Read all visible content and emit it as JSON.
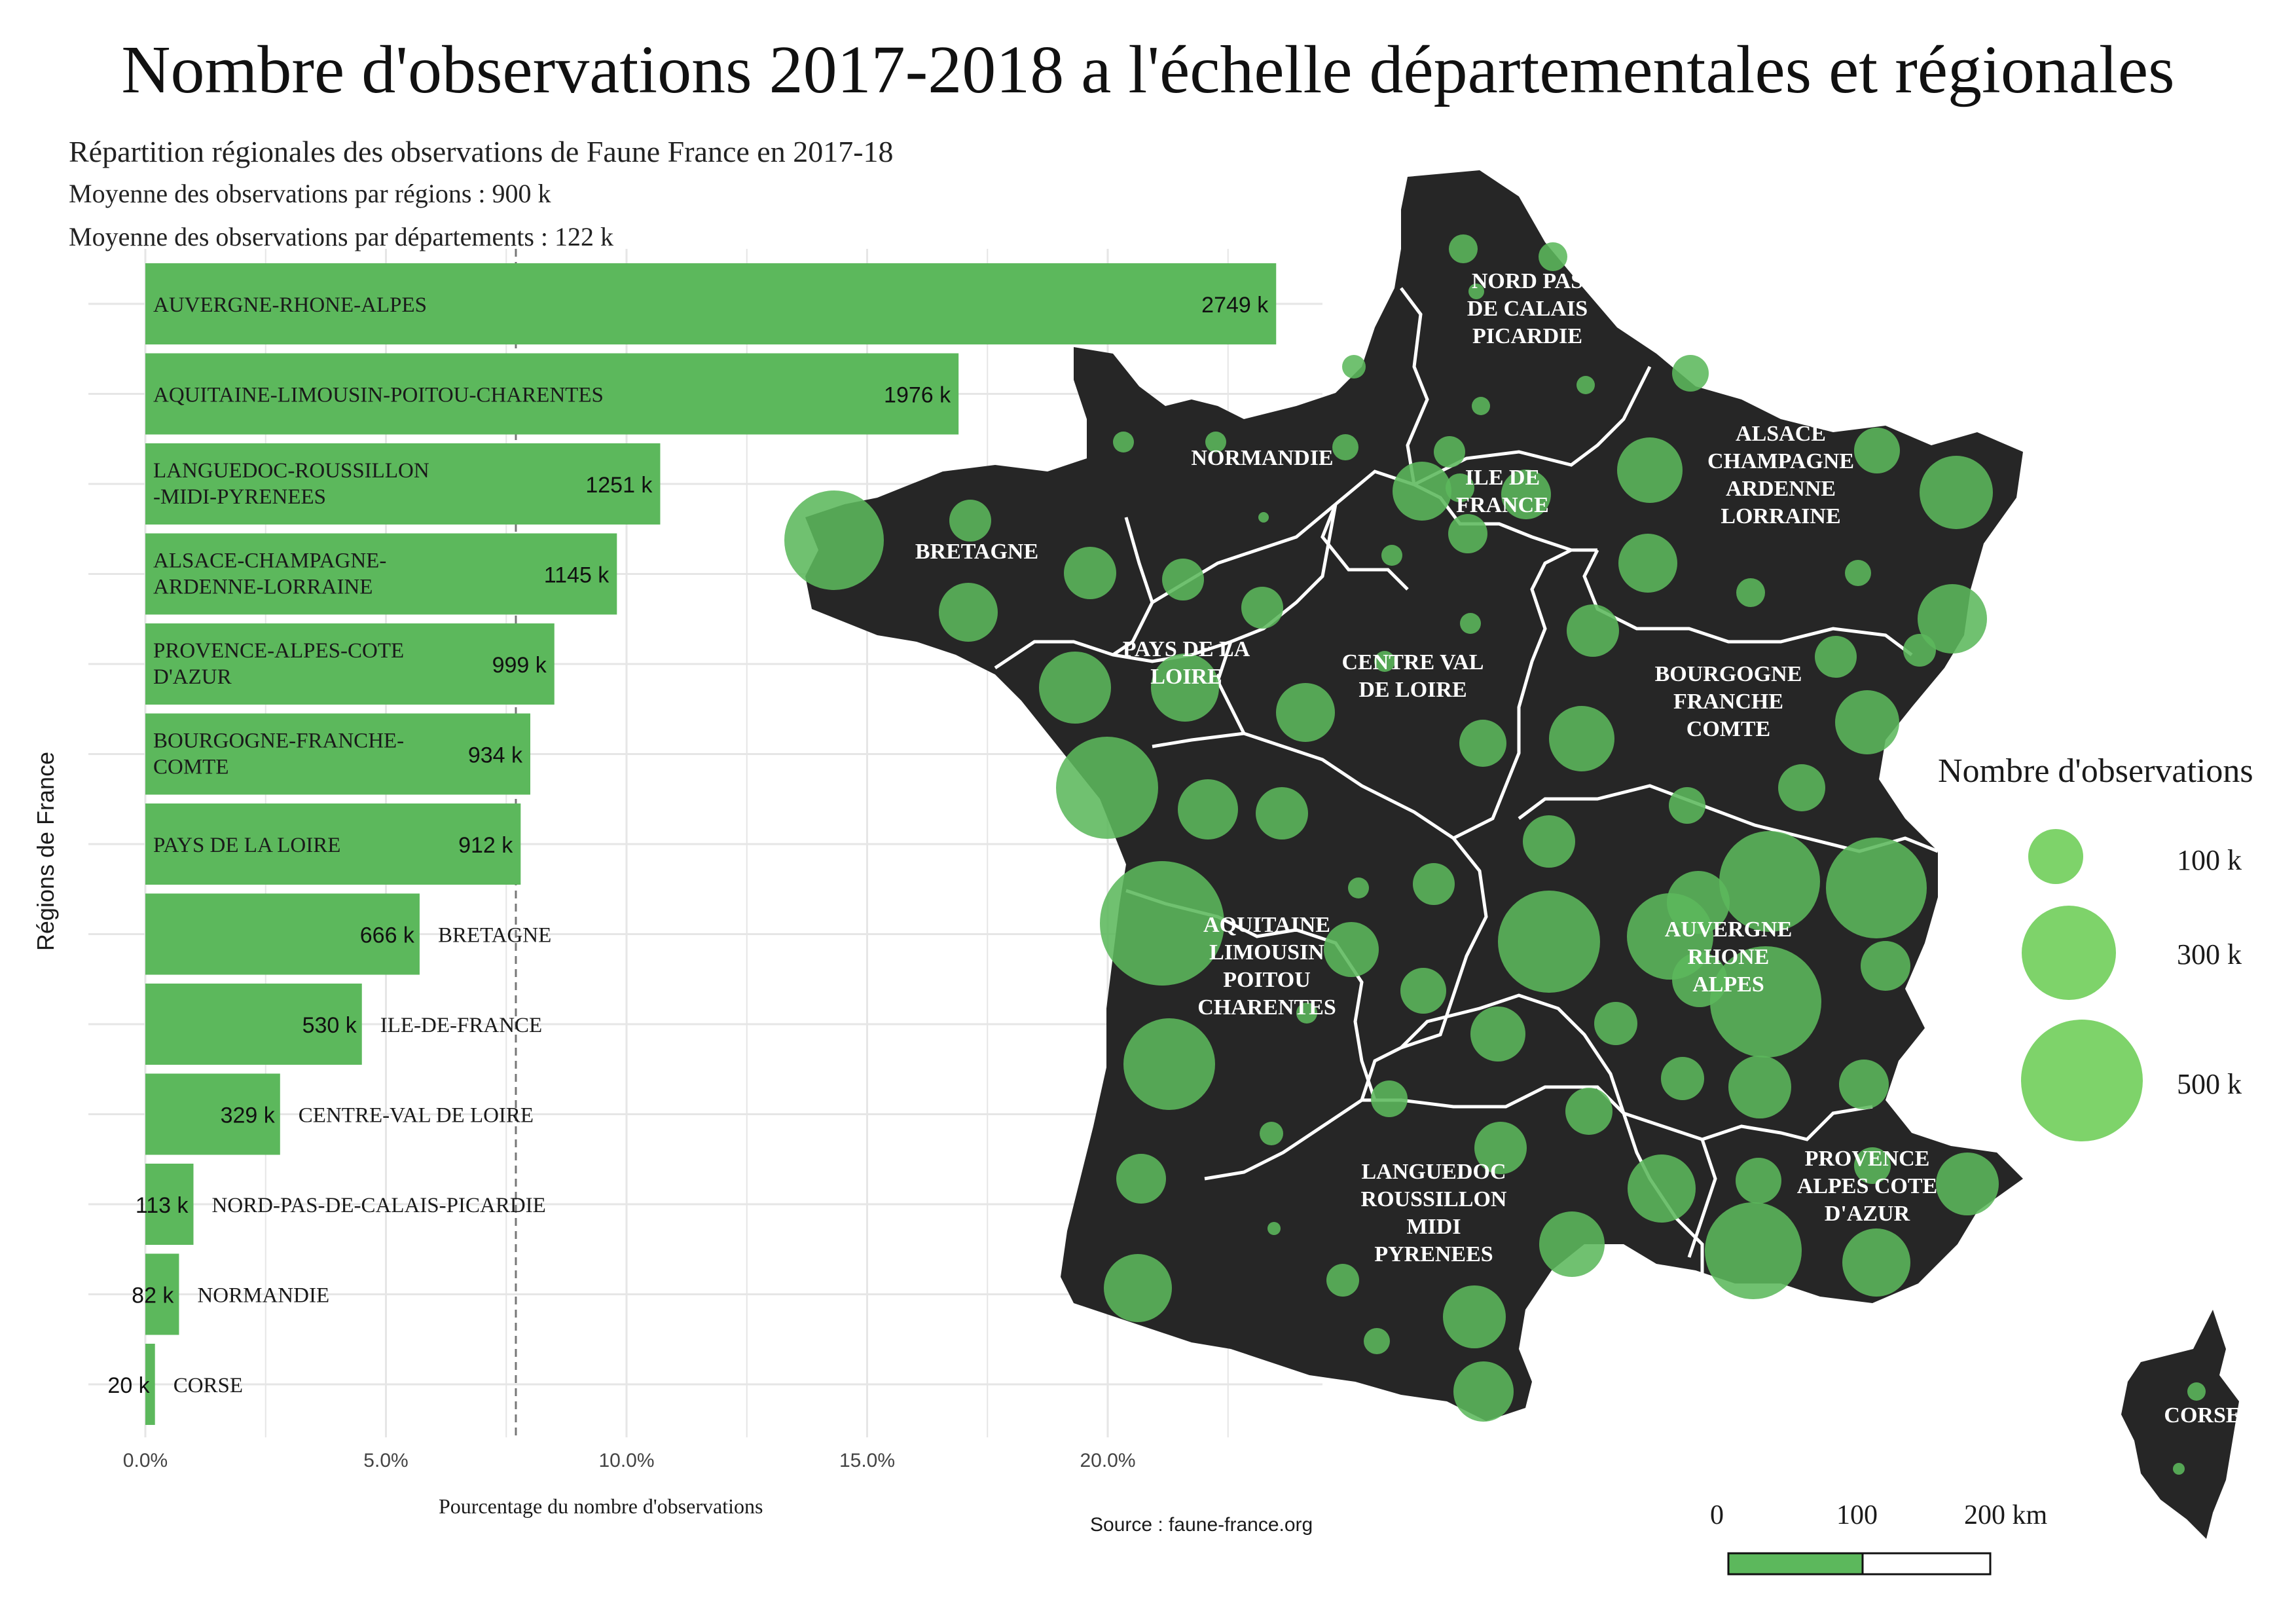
{
  "title": "Nombre d'observations 2017-2018 a l'échelle départementales et régionales",
  "subtitle_1": "Répartition régionales des observations de Faune France en 2017-18",
  "subtitle_2": "Moyenne  des observations par régions : 900 k",
  "subtitle_3": "Moyenne  des observations par départements : 122 k",
  "source": "Source : faune-france.org",
  "chart_data": {
    "type": "bar",
    "orientation": "horizontal",
    "xlabel": "Pourcentage du nombre d'observations",
    "ylabel": "Régions de France",
    "xlim": [
      0,
      24.5
    ],
    "x_ticks": [
      "0.0%",
      "5.0%",
      "10.0%",
      "15.0%",
      "20.0%"
    ],
    "x_tick_values": [
      0,
      5,
      10,
      15,
      20
    ],
    "mean_line_percent": 7.7,
    "bar_color": "#5cb85c",
    "categories": [
      "AUVERGNE-RHONE-ALPES",
      "AQUITAINE-LIMOUSIN-POITOU-CHARENTES",
      "LANGUEDOC-ROUSSILLON\n-MIDI-PYRENEES",
      "ALSACE-CHAMPAGNE-\nARDENNE-LORRAINE",
      "PROVENCE-ALPES-COTE\nD'AZUR",
      "BOURGOGNE-FRANCHE-\nCOMTE",
      "PAYS DE LA LOIRE",
      "BRETAGNE",
      "ILE-DE-FRANCE",
      "CENTRE-VAL DE LOIRE",
      "NORD-PAS-DE-CALAIS-PICARDIE",
      "NORMANDIE",
      "CORSE"
    ],
    "value_labels": [
      "2749 k",
      "1976 k",
      "1251 k",
      "1145 k",
      "999 k",
      "934 k",
      "912 k",
      "666 k",
      "530 k",
      "329 k",
      "113 k",
      "82 k",
      "20 k"
    ],
    "values_percent": [
      23.5,
      16.9,
      10.7,
      9.8,
      8.5,
      8.0,
      7.8,
      5.7,
      4.5,
      2.8,
      1.0,
      0.7,
      0.2
    ]
  },
  "map": {
    "land_color": "#262626",
    "circle_color": "#5cb85c",
    "region_labels": [
      "NORD PAS\nDE CALAIS\nPICARDIE",
      "NORMANDIE",
      "ILE DE\nFRANCE",
      "ALSACE\nCHAMPAGNE\nARDENNE\nLORRAINE",
      "BRETAGNE",
      "PAYS DE LA\nLOIRE",
      "CENTRE VAL\nDE LOIRE",
      "BOURGOGNE\nFRANCHE\nCOMTE",
      "AQUITAINE\nLIMOUSIN\nPOITOU\nCHARENTES",
      "AUVERGNE\nRHONE\nALPES",
      "LANGUEDOC\nROUSSILLON\nMIDI\nPYRENEES",
      "PROVENCE\nALPES COTE\nD'AZUR",
      "CORSE"
    ]
  },
  "legend": {
    "title": "Nombre d'observations",
    "items": [
      "100 k",
      "300 k",
      "500 k"
    ],
    "color": "#7ed36a"
  },
  "scale_bar": {
    "labels": [
      "0",
      "100",
      "200 km"
    ],
    "color": "#5cb85c"
  }
}
